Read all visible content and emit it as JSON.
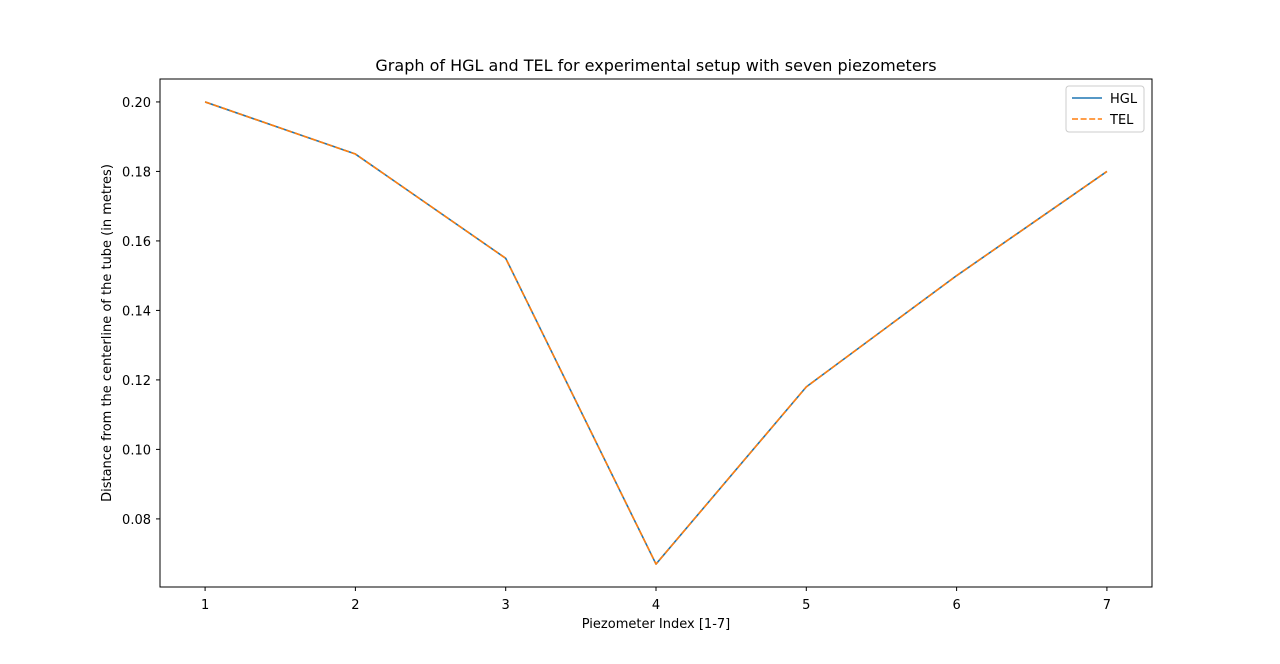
{
  "chart_data": {
    "type": "line",
    "title": "Graph of HGL and TEL for experimental setup with seven piezometers",
    "xlabel": "Piezometer Index [1-7]",
    "ylabel": "Distance from the centerline of the tube (in metres)",
    "x": [
      1,
      2,
      3,
      4,
      5,
      6,
      7
    ],
    "xticks": [
      "1",
      "2",
      "3",
      "4",
      "5",
      "6",
      "7"
    ],
    "yticks": [
      "0.08",
      "0.10",
      "0.12",
      "0.14",
      "0.16",
      "0.18",
      "0.20"
    ],
    "ytick_values": [
      0.08,
      0.1,
      0.12,
      0.14,
      0.16,
      0.18,
      0.2
    ],
    "xlim": [
      0.7,
      7.3
    ],
    "ylim": [
      0.0604,
      0.2066
    ],
    "grid": false,
    "legend_position": "upper right",
    "series": [
      {
        "name": "HGL",
        "values": [
          0.2,
          0.185,
          0.155,
          0.067,
          0.118,
          0.15,
          0.18
        ],
        "color": "#1f77b4",
        "style": "solid"
      },
      {
        "name": "TEL",
        "values": [
          0.2,
          0.185,
          0.155,
          0.067,
          0.118,
          0.15,
          0.18
        ],
        "color": "#ff7f0e",
        "style": "dashed"
      }
    ]
  }
}
